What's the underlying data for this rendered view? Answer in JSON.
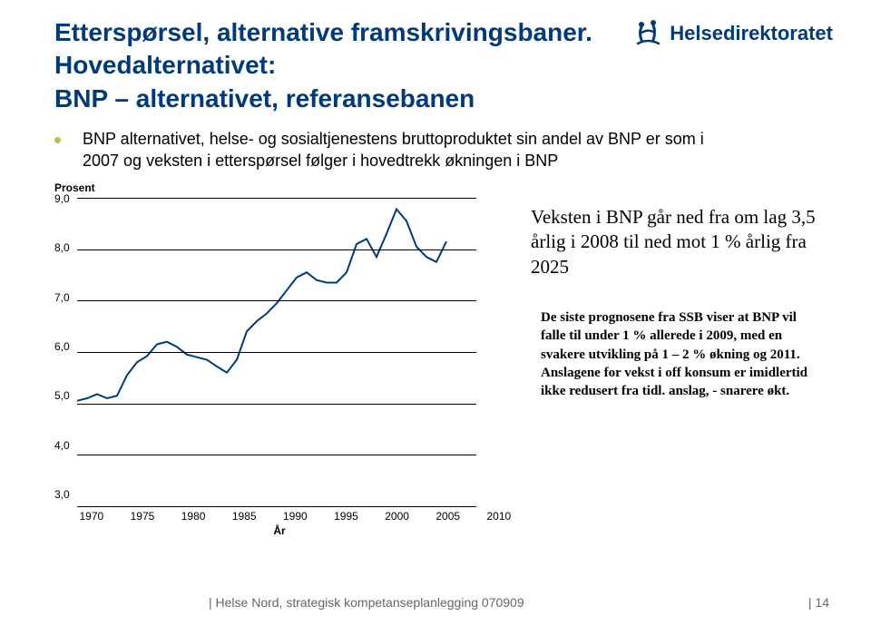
{
  "logo_text": "Helsedirektoratet",
  "title_line1": "Etterspørsel, alternative framskrivingsbaner.",
  "title_line2": "Hovedalternativet:",
  "title_line3": "BNP – alternativet, referansebanen",
  "bullet_text": "BNP alternativet, helse- og sosialtjenestens bruttoproduktet sin andel av BNP er som i 2007 og veksten i etterspørsel følger i hovedtrekk økningen i BNP",
  "annotation1": "Veksten i BNP går ned fra om lag 3,5 årlig i 2008 til ned mot 1 % årlig fra 2025",
  "annotation2": "De siste prognosene fra SSB viser at BNP vil falle til under 1 % allerede i 2009, med en svakere utvikling på 1 – 2 % økning og 2011. Anslagene for vekst i off konsum er imidlertid ikke redusert fra tidl. anslag, - snarere økt.",
  "chart": {
    "type": "line",
    "y_label": "Prosent",
    "x_label": "År",
    "ylim": [
      3.0,
      9.0
    ],
    "ytick_step": 1.0,
    "xlim": [
      1970,
      2010
    ],
    "xtick_step": 5,
    "grid_color": "#000000",
    "line_color": "#003a7a",
    "line_width": 2,
    "background_color": "#ffffff",
    "x": [
      1970,
      1971,
      1972,
      1973,
      1974,
      1975,
      1976,
      1977,
      1978,
      1979,
      1980,
      1981,
      1982,
      1983,
      1984,
      1985,
      1986,
      1987,
      1988,
      1989,
      1990,
      1991,
      1992,
      1993,
      1994,
      1995,
      1996,
      1997,
      1998,
      1999,
      2000,
      2001,
      2002,
      2003,
      2004,
      2005,
      2006,
      2007
    ],
    "y": [
      5.05,
      5.1,
      5.18,
      5.1,
      5.15,
      5.55,
      5.8,
      5.92,
      6.15,
      6.2,
      6.1,
      5.95,
      5.9,
      5.85,
      5.72,
      5.6,
      5.85,
      6.4,
      6.6,
      6.75,
      6.95,
      7.2,
      7.45,
      7.55,
      7.4,
      7.35,
      7.35,
      7.55,
      8.1,
      8.2,
      7.85,
      8.3,
      8.78,
      8.55,
      8.05,
      7.85,
      7.75,
      8.15
    ]
  },
  "footer_left": "| Helse Nord, strategisk kompetanseplanlegging 070909",
  "footer_right": "| 14"
}
